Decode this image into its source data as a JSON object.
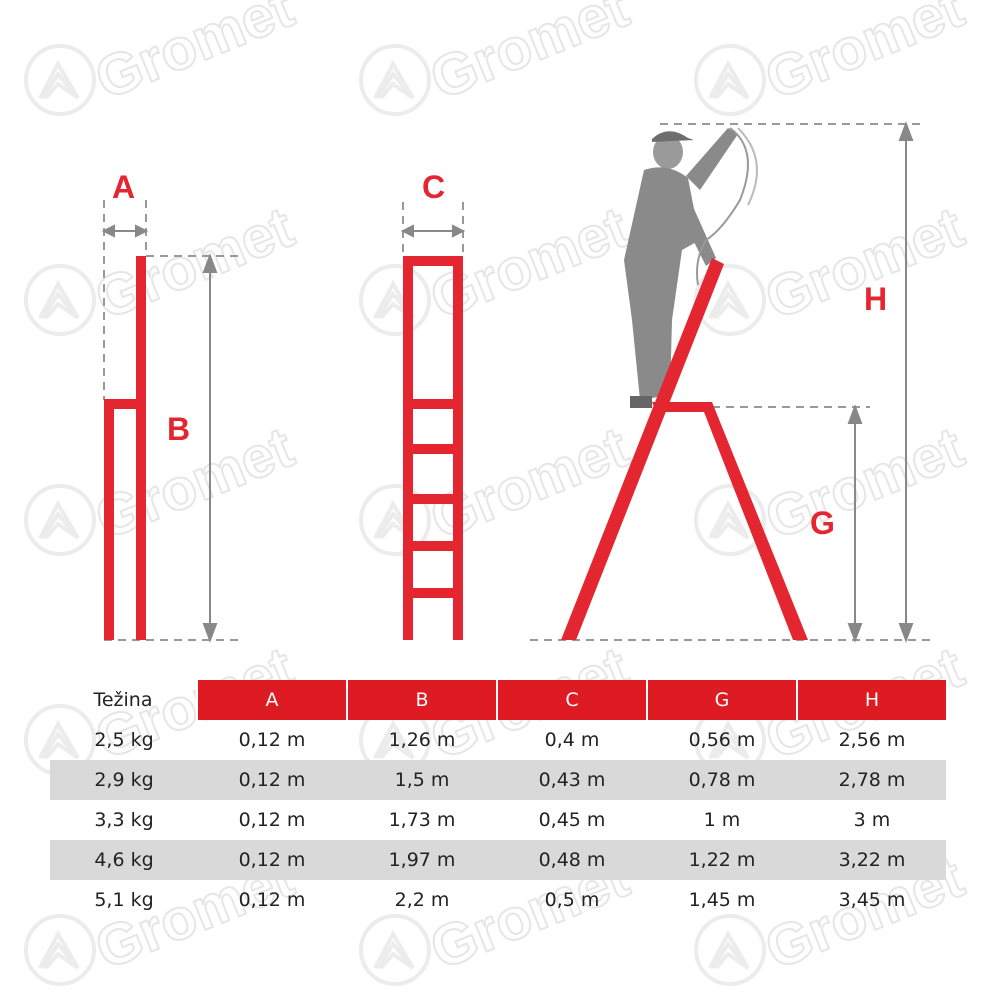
{
  "watermark": {
    "text": "Gromet"
  },
  "labels": {
    "a": "A",
    "b": "B",
    "c": "C",
    "g": "G",
    "h": "H"
  },
  "colors": {
    "ladder": "#e3262f",
    "header": "#de1b22",
    "shaded_row": "#d9d9d9",
    "dimension": "#888888"
  },
  "table": {
    "headers": [
      "Težina",
      "A",
      "B",
      "C",
      "G",
      "H"
    ],
    "rows": [
      [
        "2,5 kg",
        "0,12 m",
        "1,26 m",
        "0,4 m",
        "0,56 m",
        "2,56 m"
      ],
      [
        "2,9 kg",
        "0,12 m",
        "1,5 m",
        "0,43 m",
        "0,78 m",
        "2,78 m"
      ],
      [
        "3,3 kg",
        "0,12 m",
        "1,73 m",
        "0,45 m",
        "1 m",
        "3 m"
      ],
      [
        "4,6 kg",
        "0,12 m",
        "1,97 m",
        "0,48 m",
        "1,22 m",
        "3,22 m"
      ],
      [
        "5,1 kg",
        "0,12 m",
        "2,2 m",
        "0,5 m",
        "1,45 m",
        "3,45 m"
      ]
    ]
  }
}
